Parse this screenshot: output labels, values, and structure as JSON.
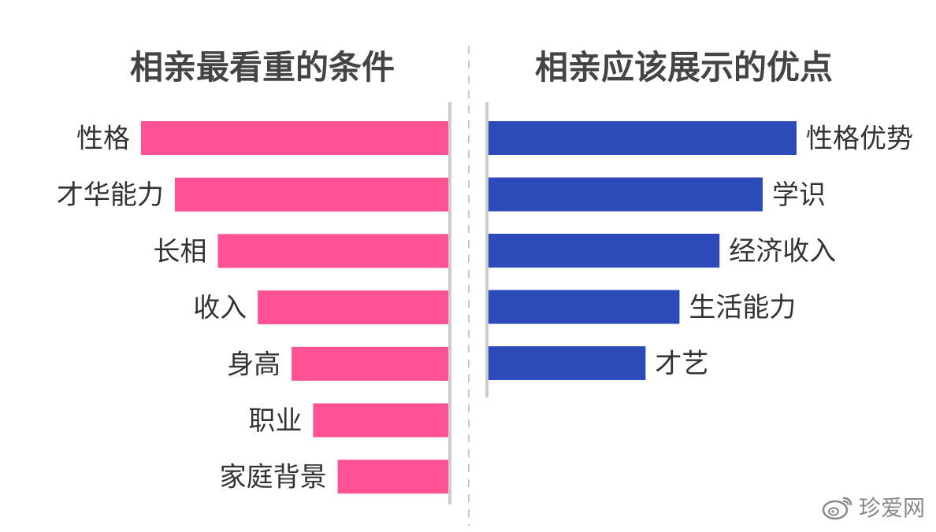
{
  "chart_data": [
    {
      "type": "bar",
      "orientation": "horizontal",
      "title": "相亲最看重的条件",
      "categories": [
        "性格",
        "才华能力",
        "长相",
        "收入",
        "身高",
        "职业",
        "家庭背景"
      ],
      "values": [
        100,
        89,
        75,
        62,
        51,
        44,
        36
      ],
      "xlim": [
        0,
        100
      ],
      "color": "#FF5294",
      "grid": false,
      "legend": "none",
      "bar_direction": "leftward"
    },
    {
      "type": "bar",
      "orientation": "horizontal",
      "title": "相亲应该展示的优点",
      "categories": [
        "性格优势",
        "学识",
        "经济收入",
        "生活能力",
        "才艺"
      ],
      "values": [
        100,
        89,
        75,
        62,
        51
      ],
      "xlim": [
        0,
        100
      ],
      "color": "#2C4AB8",
      "grid": false,
      "legend": "none",
      "bar_direction": "rightward"
    }
  ],
  "watermark": {
    "text": "珍爱网",
    "icon": "weibo-icon"
  }
}
